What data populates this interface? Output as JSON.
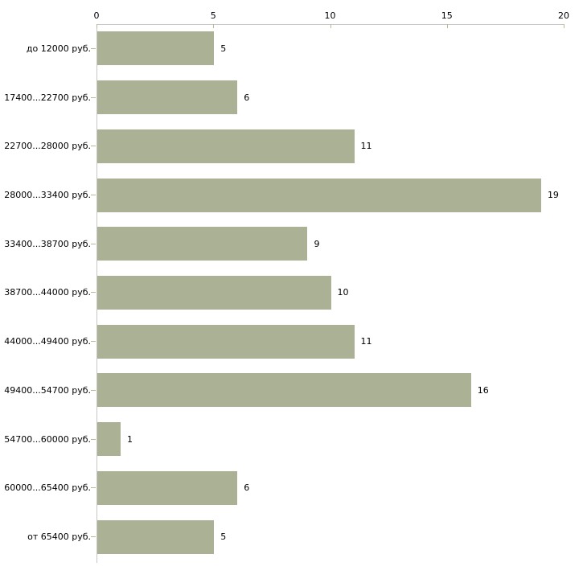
{
  "chart_data": {
    "type": "bar",
    "orientation": "horizontal",
    "title": "",
    "xlabel": "",
    "ylabel": "",
    "categories": [
      "до 12000 руб.",
      "17400...22700 руб.",
      "22700...28000 руб.",
      "28000...33400 руб.",
      "33400...38700 руб.",
      "38700...44000 руб.",
      "44000...49400 руб.",
      "49400...54700 руб.",
      "54700...60000 руб.",
      "60000...65400 руб.",
      "от 65400 руб."
    ],
    "values": [
      5,
      6,
      11,
      19,
      9,
      10,
      11,
      16,
      1,
      6,
      5
    ],
    "value_labels": [
      "5",
      "6",
      "11",
      "19",
      "9",
      "10",
      "11",
      "16",
      "1",
      "6",
      "5"
    ],
    "xlim": [
      0,
      20
    ],
    "x_ticks": [
      0,
      5,
      10,
      15,
      20
    ],
    "x_tick_labels": [
      "0",
      "5",
      "10",
      "15",
      "20"
    ],
    "x_axis_position": "top",
    "grid": false,
    "legend": "none",
    "colors": {
      "bar": "#abb194",
      "axis_line": "#c6c6c6",
      "tick_mark": "#b9ba8f",
      "text": "#000000",
      "background": "#ffffff"
    }
  }
}
